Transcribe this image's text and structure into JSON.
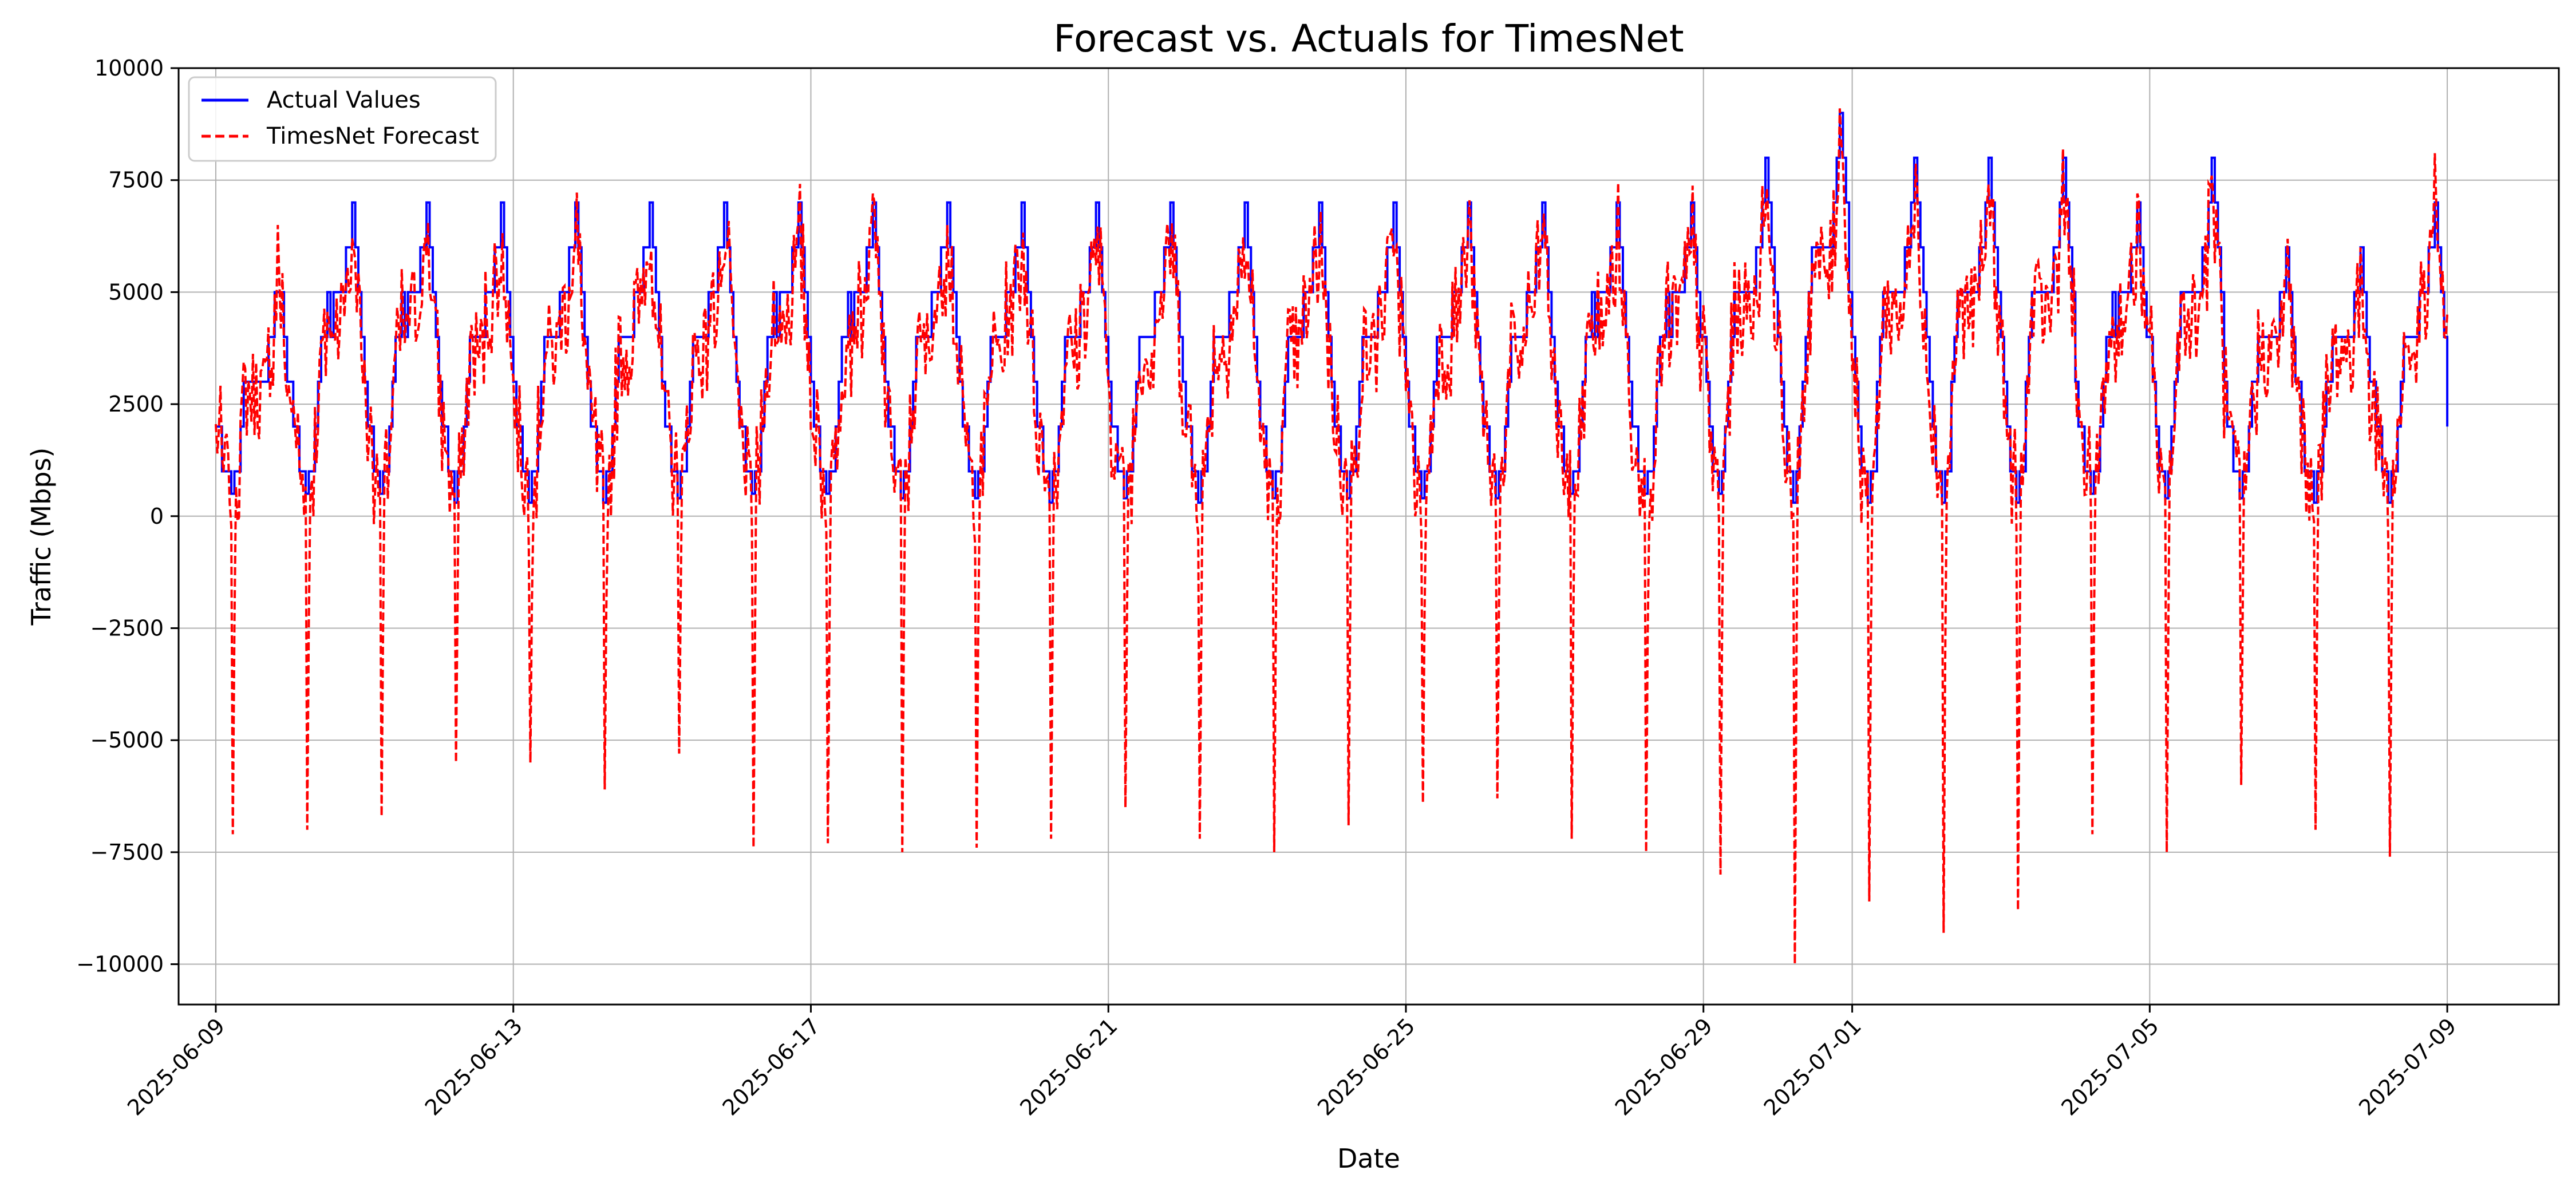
{
  "chart_data": {
    "type": "line",
    "title": "Forecast vs. Actuals for TimesNet",
    "xlabel": "Date",
    "ylabel": "Traffic (Mbps)",
    "x_range": [
      "2025-06-08T12:00",
      "2025-07-10T12:00"
    ],
    "ylim": [
      -10900,
      10000
    ],
    "y_ticks": [
      -10000,
      -7500,
      -5000,
      -2500,
      0,
      2500,
      5000,
      7500,
      10000
    ],
    "x_ticks": [
      "2025-06-09",
      "2025-06-13",
      "2025-06-17",
      "2025-06-21",
      "2025-06-25",
      "2025-06-29",
      "2025-07-01",
      "2025-07-05",
      "2025-07-09"
    ],
    "grid": true,
    "legend_position": "top-left",
    "days": [
      "2025-06-09",
      "2025-06-10",
      "2025-06-11",
      "2025-06-12",
      "2025-06-13",
      "2025-06-14",
      "2025-06-15",
      "2025-06-16",
      "2025-06-17",
      "2025-06-18",
      "2025-06-19",
      "2025-06-20",
      "2025-06-21",
      "2025-06-22",
      "2025-06-23",
      "2025-06-24",
      "2025-06-25",
      "2025-06-26",
      "2025-06-27",
      "2025-06-28",
      "2025-06-29",
      "2025-06-30",
      "2025-07-01",
      "2025-07-02",
      "2025-07-03",
      "2025-07-04",
      "2025-07-05",
      "2025-07-06",
      "2025-07-07",
      "2025-07-08"
    ],
    "series": [
      {
        "name": "Actual Values",
        "color": "#0000ff",
        "style": "solid",
        "daily_min": [
          500,
          500,
          500,
          300,
          300,
          300,
          400,
          500,
          500,
          400,
          400,
          300,
          400,
          300,
          400,
          400,
          400,
          400,
          500,
          500,
          500,
          300,
          300,
          300,
          300,
          500,
          400,
          400,
          300,
          300
        ],
        "daily_max": [
          5000,
          7000,
          7000,
          7000,
          7000,
          7000,
          7000,
          7000,
          7000,
          7000,
          7000,
          7000,
          7000,
          7000,
          7000,
          7000,
          7000,
          7000,
          7000,
          7000,
          8000,
          9000,
          8000,
          8000,
          8000,
          7000,
          8000,
          6000,
          6000,
          7000
        ],
        "end_value": 2000
      },
      {
        "name": "TimesNet Forecast",
        "color": "#ff0000",
        "style": "dashed",
        "daily_min": [
          -7100,
          -7000,
          -6700,
          -5500,
          -5500,
          -6100,
          -5300,
          -7400,
          -7300,
          -7500,
          -7400,
          -7200,
          -6500,
          -7200,
          -7500,
          -6900,
          -6400,
          -6300,
          -7200,
          -7500,
          -8000,
          -10000,
          -8600,
          -9300,
          -8800,
          -7100,
          -7500,
          -6000,
          -7000,
          -7600
        ],
        "daily_max": [
          6500,
          6200,
          5800,
          5200,
          6200,
          5500,
          5600,
          6600,
          7200,
          6500,
          5700,
          5600,
          5400,
          5300,
          5400,
          5800,
          6400,
          6200,
          6000,
          5900,
          6700,
          9100,
          6200,
          7400,
          8200,
          7200,
          7600,
          5400,
          6000,
          8100
        ],
        "end_value": 4500
      }
    ]
  }
}
